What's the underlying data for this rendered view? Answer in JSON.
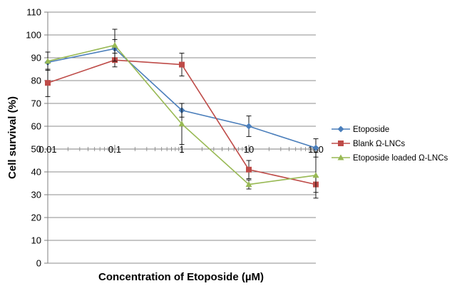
{
  "chart_data": {
    "type": "line",
    "title": "",
    "xlabel": "Concentration of Etoposide (µM)",
    "ylabel": "Cell survival (%)",
    "x_scale": "log",
    "xlim": [
      0.01,
      100
    ],
    "ylim": [
      0,
      110
    ],
    "x_ticks": [
      0.01,
      0.1,
      1,
      10,
      100
    ],
    "x_tick_labels": [
      "0.01",
      "0.1",
      "1",
      "10",
      "100"
    ],
    "y_ticks": [
      0,
      10,
      20,
      30,
      40,
      50,
      60,
      70,
      80,
      90,
      100,
      110
    ],
    "y_tick_labels": [
      "0",
      "10",
      "20",
      "30",
      "40",
      "50",
      "60",
      "70",
      "80",
      "90",
      "100",
      "110"
    ],
    "x_axis_crosses_y": 50,
    "grid": "horizontal",
    "legend_position": "right",
    "x": [
      0.01,
      0.1,
      1,
      10,
      100
    ],
    "series": [
      {
        "name": "Etoposide",
        "color": "#4a7ebb",
        "marker": "diamond",
        "values": [
          88,
          94,
          67,
          60,
          50.5
        ],
        "errors": [
          0,
          4,
          3,
          4.5,
          4
        ]
      },
      {
        "name": "Blank Ω-LNCs",
        "color": "#be4b48",
        "marker": "square",
        "values": [
          79,
          89,
          87,
          41,
          34.5
        ],
        "errors": [
          6,
          3,
          5,
          4,
          3.5
        ]
      },
      {
        "name": "Etoposide loaded Ω-LNCs",
        "color": "#98b954",
        "marker": "triangle",
        "values": [
          88.5,
          95.5,
          61,
          34.5,
          38.5
        ],
        "errors": [
          4,
          7,
          9,
          2,
          10
        ]
      }
    ]
  }
}
